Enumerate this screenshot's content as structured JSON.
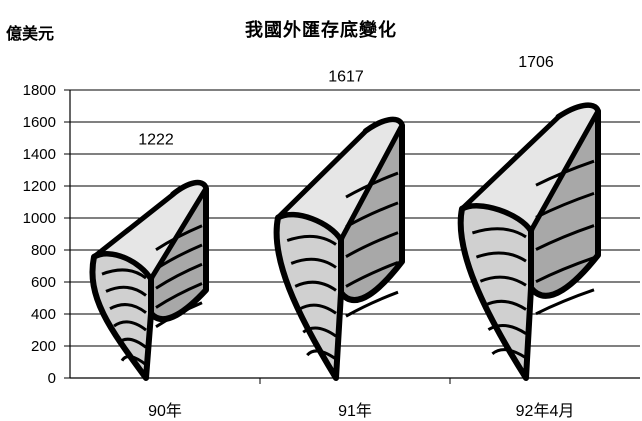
{
  "chart_data": {
    "type": "bar",
    "title": "我國外匯存底變化",
    "ylabel": "億美元",
    "xlabel": "",
    "categories": [
      "90年",
      "91年",
      "92年4月"
    ],
    "values": [
      1222,
      1617,
      1706
    ],
    "ylim": [
      0,
      1800
    ],
    "yticks": [
      0,
      200,
      400,
      600,
      800,
      1000,
      1200,
      1400,
      1600,
      1800
    ],
    "grid": true,
    "legend": "none",
    "bar_style": "pictograph-money-stack"
  }
}
